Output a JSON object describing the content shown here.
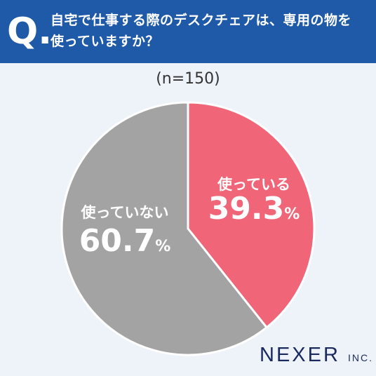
{
  "header": {
    "q_mark": "Q.",
    "question_line1": "自宅で仕事する際のデスクチェアは、専用の物を",
    "question_line2": "使っていますか？"
  },
  "sample_note": "(n=150)",
  "brand": {
    "name": "NEXER",
    "suffix": "INC."
  },
  "colors": {
    "used": "#f06578",
    "not_used": "#a3a3a3",
    "header": "#1f5aa8"
  },
  "chart_data": {
    "type": "pie",
    "title": "自宅で仕事する際のデスクチェアは、専用の物を使っていますか？",
    "slices": [
      {
        "label": "使っている",
        "value": 39.3,
        "value_text": "39.3",
        "color": "#f06578"
      },
      {
        "label": "使っていない",
        "value": 60.7,
        "value_text": "60.7",
        "color": "#a3a3a3"
      }
    ],
    "unit": "%"
  }
}
